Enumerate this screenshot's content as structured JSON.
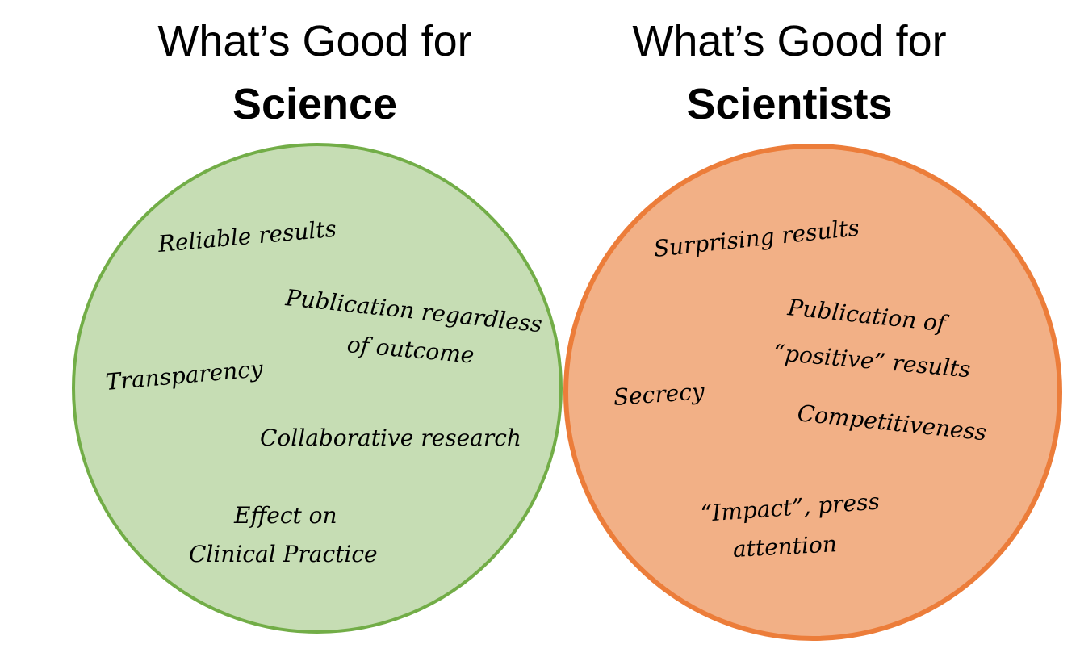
{
  "left_set": {
    "title_line1": "What’s Good for",
    "title_line2": "Science",
    "fill_color": "#c6ddb4",
    "stroke_color": "#72ad47",
    "items": [
      "Reliable results",
      "Publication regardless",
      "of outcome",
      "Transparency",
      "Collaborative research",
      "Effect on",
      "Clinical Practice"
    ]
  },
  "right_set": {
    "title_line1": "What’s Good for",
    "title_line2": "Scientists",
    "fill_color": "#f2b086",
    "stroke_color": "#ec7d3a",
    "items": [
      "Surprising results",
      "Publication of",
      "“positive” results",
      "Secrecy",
      "Competitiveness",
      "“Impact”, press",
      "attention"
    ]
  }
}
